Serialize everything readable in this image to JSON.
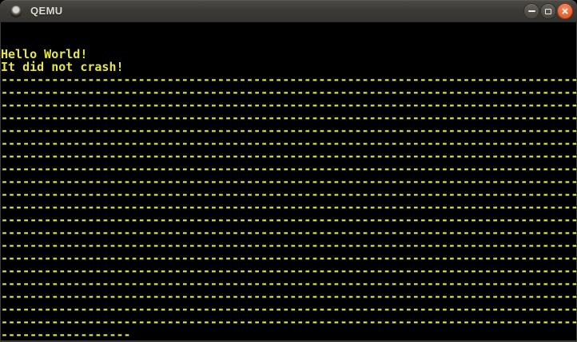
{
  "window": {
    "title": "QEMU",
    "titlebar_icon": "window-orb-icon",
    "controls": [
      {
        "name": "minimize",
        "icon": "minimize-icon"
      },
      {
        "name": "maximize",
        "icon": "maximize-icon"
      },
      {
        "name": "close",
        "icon": "close-icon"
      }
    ],
    "colors": {
      "frame": "#3C3B37",
      "title_text": "#DFDBD2",
      "control_button_gray": "#54514A",
      "close_button": "#E3602F"
    }
  },
  "screen": {
    "type": "qemu-vga-text-display",
    "columns": 80,
    "rows": 25,
    "colors": {
      "background": "#000000",
      "foreground": "#E6E64C"
    },
    "lines": [
      "",
      "",
      "Hello World!",
      "It did not crash!",
      "--------------------------------------------------------------------------------",
      "--------------------------------------------------------------------------------",
      "--------------------------------------------------------------------------------",
      "--------------------------------------------------------------------------------",
      "--------------------------------------------------------------------------------",
      "--------------------------------------------------------------------------------",
      "--------------------------------------------------------------------------------",
      "--------------------------------------------------------------------------------",
      "--------------------------------------------------------------------------------",
      "--------------------------------------------------------------------------------",
      "--------------------------------------------------------------------------------",
      "--------------------------------------------------------------------------------",
      "--------------------------------------------------------------------------------",
      "--------------------------------------------------------------------------------",
      "--------------------------------------------------------------------------------",
      "--------------------------------------------------------------------------------",
      "--------------------------------------------------------------------------------",
      "--------------------------------------------------------------------------------",
      "--------------------------------------------------------------------------------",
      "--------------------------------------------------------------------------------",
      "------------------"
    ]
  }
}
